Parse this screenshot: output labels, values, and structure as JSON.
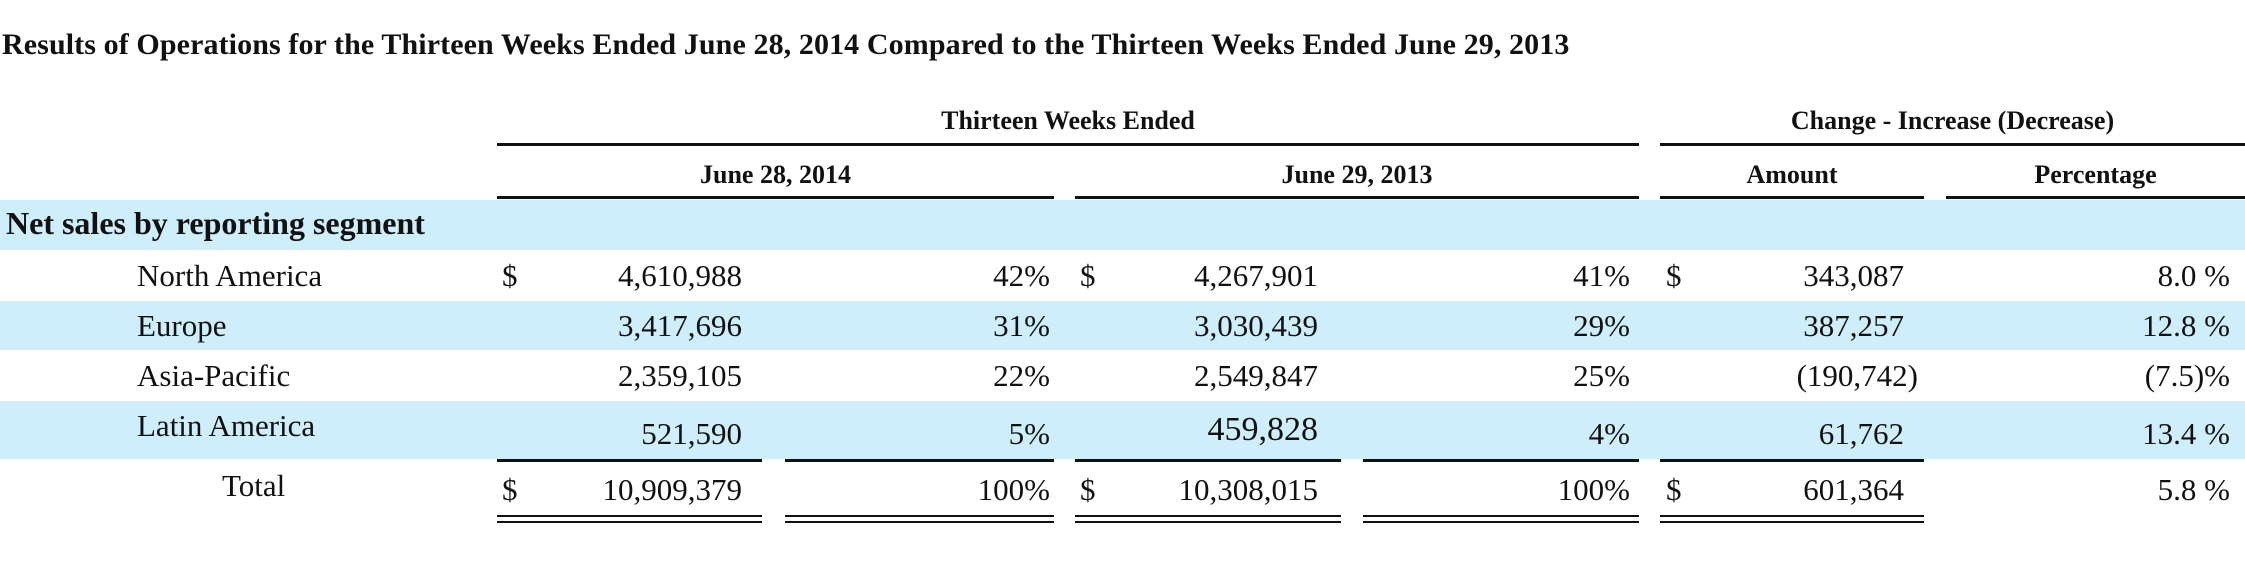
{
  "title": "Results of Operations for the Thirteen Weeks Ended June 28, 2014 Compared to the Thirteen Weeks Ended June 29, 2013",
  "header": {
    "group1": "Thirteen Weeks Ended",
    "group2": "Change - Increase (Decrease)",
    "col_2014": "June 28, 2014",
    "col_2013": "June 29, 2013",
    "col_amount": "Amount",
    "col_percentage": "Percentage"
  },
  "section_label": "Net sales by reporting segment",
  "currency_symbol": "$",
  "rows": [
    {
      "label": "North America",
      "v2014": "4,610,988",
      "p2014": "42%",
      "v2013": "4,267,901",
      "p2013": "41%",
      "amount": "343,087",
      "pct": "8.0 %"
    },
    {
      "label": "Europe",
      "v2014": "3,417,696",
      "p2014": "31%",
      "v2013": "3,030,439",
      "p2013": "29%",
      "amount": "387,257",
      "pct": "12.8 %"
    },
    {
      "label": "Asia-Pacific",
      "v2014": "2,359,105",
      "p2014": "22%",
      "v2013": "2,549,847",
      "p2013": "25%",
      "amount": "(190,742)",
      "pct": "(7.5)%"
    },
    {
      "label": "Latin America",
      "v2014": "521,590",
      "p2014": "5%",
      "v2013": "459,828",
      "p2013": "4%",
      "amount": "61,762",
      "pct": "13.4 %"
    }
  ],
  "total": {
    "label": "Total",
    "v2014": "10,909,379",
    "p2014": "100%",
    "v2013": "10,308,015",
    "p2013": "100%",
    "amount": "601,364",
    "pct": "5.8 %"
  },
  "colors": {
    "band": "#cdeefa",
    "text": "#111111"
  }
}
